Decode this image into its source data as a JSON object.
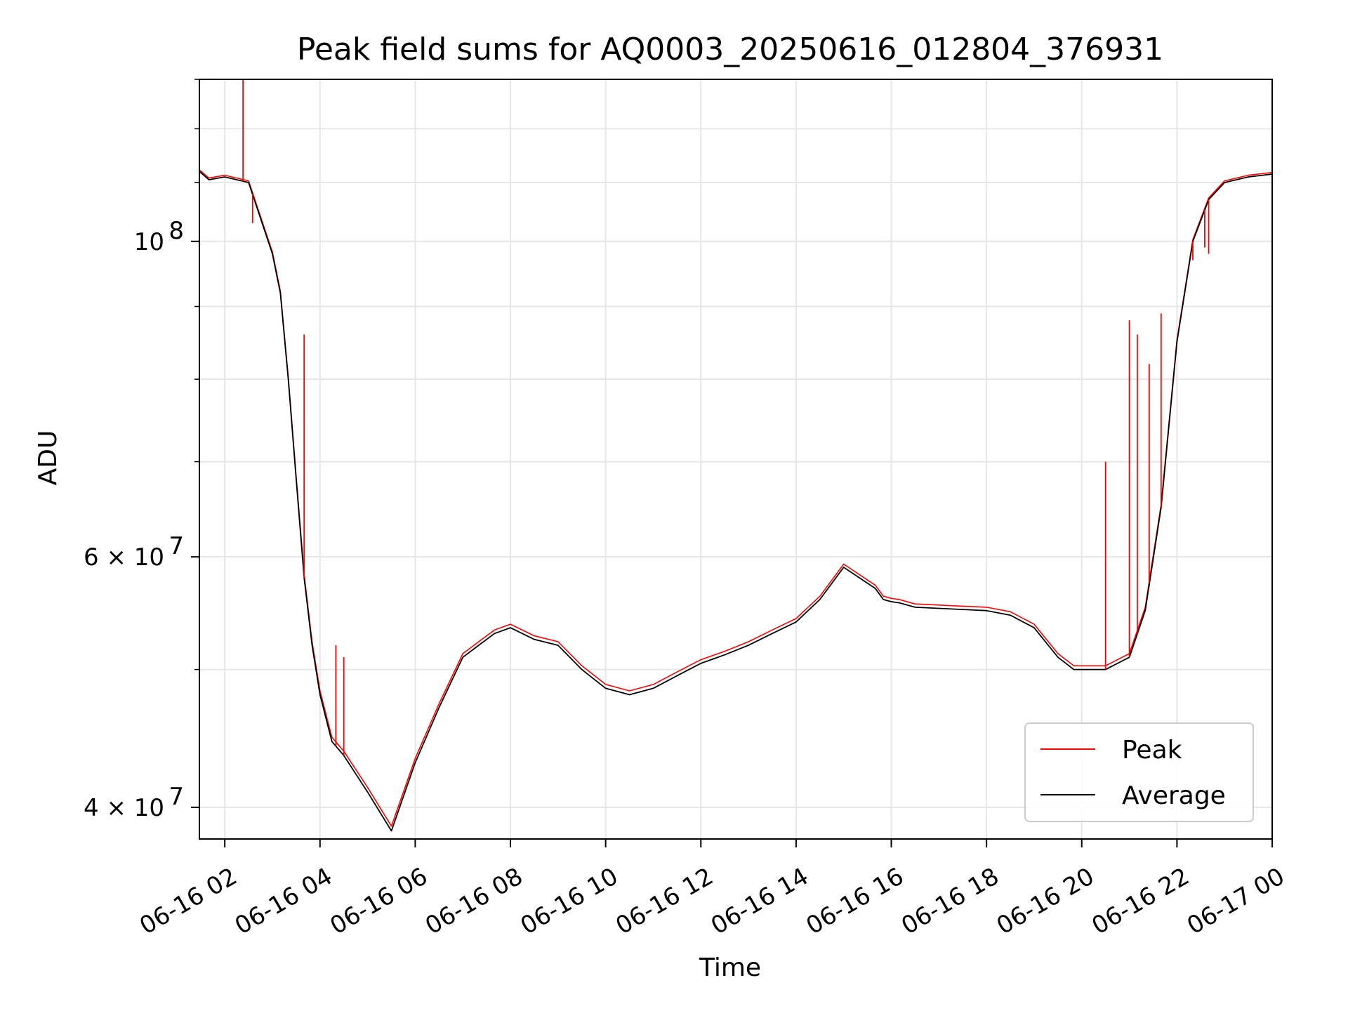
{
  "chart_data": {
    "type": "line",
    "title": "Peak field sums for AQ0003_20250616_012804_376931",
    "xlabel": "Time",
    "ylabel": "ADU",
    "xlim": [
      "2025-06-16 01:28",
      "2025-06-17 00:00"
    ],
    "ylim": [
      38000000,
      130000000
    ],
    "yscale": "log",
    "grid": true,
    "legend_placement": "lower right",
    "x_tick_labels": [
      "06-16 02",
      "06-16 04",
      "06-16 06",
      "06-16 08",
      "06-16 10",
      "06-16 12",
      "06-16 14",
      "06-16 16",
      "06-16 18",
      "06-16 20",
      "06-16 22",
      "06-17 00"
    ],
    "y_tick_labels": [
      {
        "value": 100000000,
        "label": "10",
        "exponent": "8"
      },
      {
        "value": 60000000,
        "label": "6 × 10",
        "exponent": "7"
      },
      {
        "value": 40000000,
        "label": "4 × 10",
        "exponent": "7"
      }
    ],
    "x_times": [
      "2025-06-16 01:28",
      "2025-06-16 01:40",
      "2025-06-16 02:00",
      "2025-06-16 02:30",
      "2025-06-16 03:00",
      "2025-06-16 03:10",
      "2025-06-16 03:20",
      "2025-06-16 03:30",
      "2025-06-16 03:40",
      "2025-06-16 03:50",
      "2025-06-16 04:00",
      "2025-06-16 04:15",
      "2025-06-16 04:30",
      "2025-06-16 05:00",
      "2025-06-16 05:30",
      "2025-06-16 06:00",
      "2025-06-16 06:30",
      "2025-06-16 07:00",
      "2025-06-16 07:20",
      "2025-06-16 07:40",
      "2025-06-16 08:00",
      "2025-06-16 08:30",
      "2025-06-16 09:00",
      "2025-06-16 09:30",
      "2025-06-16 10:00",
      "2025-06-16 10:30",
      "2025-06-16 11:00",
      "2025-06-16 11:30",
      "2025-06-16 12:00",
      "2025-06-16 12:30",
      "2025-06-16 13:00",
      "2025-06-16 13:30",
      "2025-06-16 14:00",
      "2025-06-16 14:30",
      "2025-06-16 15:00",
      "2025-06-16 15:40",
      "2025-06-16 15:50",
      "2025-06-16 16:00",
      "2025-06-16 16:10",
      "2025-06-16 16:30",
      "2025-06-16 17:00",
      "2025-06-16 17:30",
      "2025-06-16 18:00",
      "2025-06-16 18:30",
      "2025-06-16 19:00",
      "2025-06-16 19:30",
      "2025-06-16 19:50",
      "2025-06-16 20:00",
      "2025-06-16 20:30",
      "2025-06-16 21:00",
      "2025-06-16 21:20",
      "2025-06-16 21:40",
      "2025-06-16 22:00",
      "2025-06-16 22:20",
      "2025-06-16 22:40",
      "2025-06-16 23:00",
      "2025-06-16 23:30",
      "2025-06-17 00:00"
    ],
    "series": [
      {
        "name": "Average",
        "color": "#000000",
        "values": [
          112000000,
          110500000,
          111000000,
          110000000,
          98000000,
          92000000,
          80000000,
          68000000,
          58000000,
          52000000,
          48000000,
          44500000,
          43500000,
          41000000,
          38500000,
          43000000,
          47000000,
          51000000,
          52000000,
          53000000,
          53500000,
          52500000,
          52000000,
          50000000,
          48500000,
          48000000,
          48500000,
          49500000,
          50500000,
          51200000,
          52000000,
          53000000,
          54000000,
          56000000,
          59000000,
          57000000,
          56000000,
          55800000,
          55700000,
          55300000,
          55200000,
          55100000,
          55000000,
          54600000,
          53500000,
          51000000,
          50000000,
          50000000,
          50000000,
          51000000,
          55000000,
          65000000,
          85000000,
          100000000,
          107000000,
          110000000,
          111000000,
          111500000
        ]
      },
      {
        "name": "Peak",
        "color": "#ff0000",
        "values": [
          112300000,
          110800000,
          111300000,
          110300000,
          98300000,
          92300000,
          80300000,
          68300000,
          58300000,
          52300000,
          48300000,
          44800000,
          43800000,
          41300000,
          38800000,
          43300000,
          47300000,
          51300000,
          52300000,
          53300000,
          53800000,
          52800000,
          52300000,
          50300000,
          48800000,
          48300000,
          48800000,
          49800000,
          50800000,
          51500000,
          52300000,
          53300000,
          54300000,
          56300000,
          59300000,
          57300000,
          56300000,
          56100000,
          56000000,
          55600000,
          55500000,
          55400000,
          55300000,
          54900000,
          53800000,
          51300000,
          50300000,
          50300000,
          50300000,
          51300000,
          55300000,
          65300000,
          85300000,
          100300000,
          107300000,
          110300000,
          111300000,
          111800000
        ]
      }
    ],
    "peak_spikes": [
      {
        "time": "2025-06-16 02:23",
        "value": 130000000
      },
      {
        "time": "2025-06-16 02:35",
        "value": 103000000
      },
      {
        "time": "2025-06-16 03:40",
        "value": 86000000
      },
      {
        "time": "2025-06-16 04:20",
        "value": 52000000
      },
      {
        "time": "2025-06-16 04:30",
        "value": 51000000
      },
      {
        "time": "2025-06-16 20:30",
        "value": 70000000
      },
      {
        "time": "2025-06-16 21:00",
        "value": 88000000
      },
      {
        "time": "2025-06-16 21:10",
        "value": 86000000
      },
      {
        "time": "2025-06-16 21:25",
        "value": 82000000
      },
      {
        "time": "2025-06-16 21:40",
        "value": 89000000
      },
      {
        "time": "2025-06-16 22:20",
        "value": 97000000
      },
      {
        "time": "2025-06-16 22:35",
        "value": 99000000
      },
      {
        "time": "2025-06-16 22:40",
        "value": 98000000
      }
    ]
  }
}
